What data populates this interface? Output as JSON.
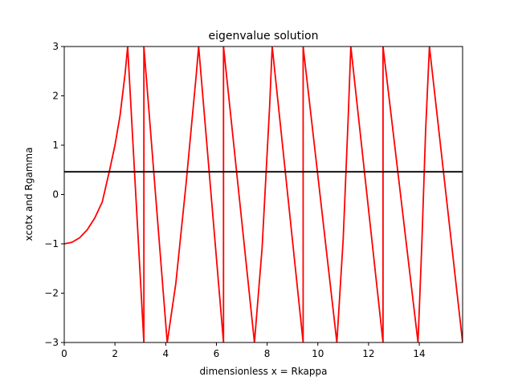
{
  "chart_data": {
    "type": "line",
    "title": "eigenvalue solution",
    "xlabel": "dimensionless x = Rkappa",
    "ylabel": "xcotx and Rgamma",
    "xlim": [
      0,
      15.708
    ],
    "ylim": [
      -3,
      3
    ],
    "xticks": [
      0,
      2,
      4,
      6,
      8,
      10,
      12,
      14
    ],
    "xtick_labels": [
      "0",
      "2",
      "4",
      "6",
      "8",
      "10",
      "12",
      "14"
    ],
    "yticks": [
      -3,
      -2,
      -1,
      0,
      1,
      2,
      3
    ],
    "ytick_labels": [
      "−3",
      "−2",
      "−1",
      "0",
      "1",
      "2",
      "3"
    ],
    "grid": false,
    "series": [
      {
        "color": "#ff0000",
        "kind": "curve",
        "x": [
          0,
          0.3,
          0.6,
          0.9,
          1.2,
          1.5,
          1.8,
          2.0,
          2.2,
          2.4,
          2.5,
          3.14,
          3.14,
          4.06,
          4.4,
          4.8,
          5.2,
          5.3,
          6.28,
          6.28,
          7.5,
          7.8,
          8.1,
          8.2,
          9.42,
          9.42,
          10.75,
          11.0,
          11.2,
          11.3,
          12.57,
          12.57,
          13.95,
          14.1,
          14.25,
          14.4,
          15.708,
          15.708
        ],
        "y": [
          -1.0,
          -0.97,
          -0.88,
          -0.72,
          -0.48,
          -0.15,
          0.52,
          1.0,
          1.6,
          2.45,
          3.0,
          -3.0,
          3.0,
          -3.0,
          -1.8,
          0.2,
          2.4,
          3.0,
          -3.0,
          3.0,
          -3.0,
          -1.1,
          1.8,
          3.0,
          -3.0,
          3.0,
          -3.0,
          -0.9,
          1.6,
          3.0,
          -3.0,
          3.0,
          -3.0,
          -1.0,
          1.3,
          3.0,
          -3.0,
          -3.0
        ]
      },
      {
        "color": "#000000",
        "kind": "hline",
        "x": [
          0,
          15.708
        ],
        "y": [
          0.46,
          0.46
        ]
      }
    ]
  }
}
